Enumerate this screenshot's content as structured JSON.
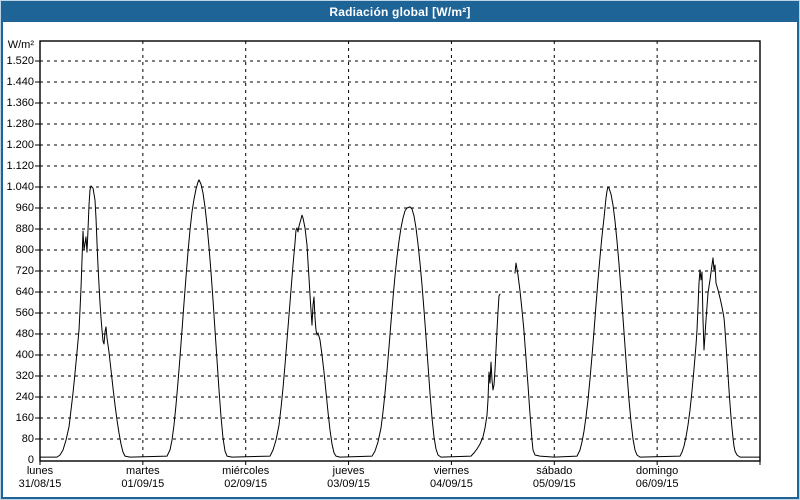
{
  "window": {
    "title": "Radiación global [W/m²]"
  },
  "colors": {
    "titlebar": "#1e6496",
    "window_border": "#1e6496",
    "plot_background": "#ffffff",
    "line": "#000000",
    "grid": "#000000",
    "label_text": "#000000",
    "title_text": "#ffffff"
  },
  "y_axis": {
    "unit": "W/m²"
  },
  "x_axis": {
    "days": [
      {
        "weekday": "lunes",
        "date": "31/08/15"
      },
      {
        "weekday": "martes",
        "date": "01/09/15"
      },
      {
        "weekday": "miércoles",
        "date": "02/09/15"
      },
      {
        "weekday": "jueves",
        "date": "03/09/15"
      },
      {
        "weekday": "viernes",
        "date": "04/09/15"
      },
      {
        "weekday": "sábado",
        "date": "05/09/15"
      },
      {
        "weekday": "domingo",
        "date": "06/09/15"
      }
    ]
  },
  "chart_data": {
    "type": "line",
    "title": "Radiación global [W/m²]",
    "xlabel": "",
    "ylabel": "W/m²",
    "ylim": [
      0,
      1585
    ],
    "grid": true,
    "legend": false,
    "x_note": "x coded in plot pixels: 40 = lunes 00:00, 102.86 px per day, 760 = end of domingo; null entry = data gap in viernes afternoon",
    "y_ticks": [
      {
        "label": "1.520",
        "value": 1520
      },
      {
        "label": "1.440",
        "value": 1440
      },
      {
        "label": "1.360",
        "value": 1360
      },
      {
        "label": "1.280",
        "value": 1280
      },
      {
        "label": "1.200",
        "value": 1200
      },
      {
        "label": "1.120",
        "value": 1120
      },
      {
        "label": "1.040",
        "value": 1040
      },
      {
        "label": "960",
        "value": 960
      },
      {
        "label": "880",
        "value": 880
      },
      {
        "label": "800",
        "value": 800
      },
      {
        "label": "720",
        "value": 720
      },
      {
        "label": "640",
        "value": 640
      },
      {
        "label": "560",
        "value": 560
      },
      {
        "label": "480",
        "value": 480
      },
      {
        "label": "400",
        "value": 400
      },
      {
        "label": "320",
        "value": 320
      },
      {
        "label": "240",
        "value": 240
      },
      {
        "label": "160",
        "value": 160
      },
      {
        "label": "80",
        "value": 80
      },
      {
        "label": "0",
        "value": 0
      }
    ],
    "daily_peaks_wm2": [
      1044,
      1067,
      933,
      964,
      750,
      1040,
      770
    ],
    "series": [
      {
        "name": "Radiación global",
        "unit": "W/m²",
        "points": [
          [
            40,
            11
          ],
          [
            57,
            11
          ],
          [
            60,
            19
          ],
          [
            63,
            38
          ],
          [
            66,
            76
          ],
          [
            69,
            126
          ],
          [
            71,
            190
          ],
          [
            73,
            255
          ],
          [
            75,
            331
          ],
          [
            77,
            411
          ],
          [
            79,
            495
          ],
          [
            80,
            571
          ],
          [
            81,
            655
          ],
          [
            82,
            762
          ],
          [
            83,
            872
          ],
          [
            84,
            800
          ],
          [
            86,
            850
          ],
          [
            87,
            792
          ],
          [
            88,
            876
          ],
          [
            89,
            971
          ],
          [
            90,
            1029
          ],
          [
            91,
            1044
          ],
          [
            93,
            1036
          ],
          [
            95,
            990
          ],
          [
            96,
            922
          ],
          [
            97,
            827
          ],
          [
            98,
            739
          ],
          [
            99,
            667
          ],
          [
            100,
            598
          ],
          [
            101,
            541
          ],
          [
            102,
            495
          ],
          [
            103,
            453
          ],
          [
            104,
            442
          ],
          [
            105,
            488
          ],
          [
            106,
            507
          ],
          [
            107,
            465
          ],
          [
            109,
            411
          ],
          [
            111,
            343
          ],
          [
            113,
            274
          ],
          [
            115,
            210
          ],
          [
            117,
            152
          ],
          [
            119,
            103
          ],
          [
            121,
            61
          ],
          [
            123,
            30
          ],
          [
            125,
            15
          ],
          [
            130,
            11
          ],
          [
            167,
            15
          ],
          [
            170,
            38
          ],
          [
            172,
            76
          ],
          [
            174,
            133
          ],
          [
            176,
            210
          ],
          [
            178,
            297
          ],
          [
            180,
            392
          ],
          [
            182,
            495
          ],
          [
            184,
            598
          ],
          [
            186,
            697
          ],
          [
            188,
            792
          ],
          [
            190,
            876
          ],
          [
            192,
            945
          ],
          [
            194,
            994
          ],
          [
            196,
            1032
          ],
          [
            198,
            1059
          ],
          [
            199,
            1067
          ],
          [
            201,
            1051
          ],
          [
            203,
            1017
          ],
          [
            205,
            964
          ],
          [
            207,
            895
          ],
          [
            209,
            811
          ],
          [
            211,
            716
          ],
          [
            213,
            610
          ],
          [
            215,
            495
          ],
          [
            217,
            381
          ],
          [
            219,
            267
          ],
          [
            221,
            164
          ],
          [
            223,
            84
          ],
          [
            225,
            34
          ],
          [
            227,
            15
          ],
          [
            232,
            11
          ],
          [
            270,
            15
          ],
          [
            273,
            38
          ],
          [
            276,
            76
          ],
          [
            279,
            133
          ],
          [
            281,
            198
          ],
          [
            283,
            274
          ],
          [
            285,
            362
          ],
          [
            287,
            457
          ],
          [
            289,
            552
          ],
          [
            291,
            648
          ],
          [
            293,
            743
          ],
          [
            295,
            827
          ],
          [
            296,
            876
          ],
          [
            297,
            884
          ],
          [
            298,
            869
          ],
          [
            299,
            891
          ],
          [
            301,
            918
          ],
          [
            302,
            933
          ],
          [
            303,
            922
          ],
          [
            305,
            884
          ],
          [
            307,
            819
          ],
          [
            308,
            754
          ],
          [
            309,
            693
          ],
          [
            310,
            629
          ],
          [
            311,
            571
          ],
          [
            312,
            514
          ],
          [
            313,
            590
          ],
          [
            314,
            621
          ],
          [
            315,
            541
          ],
          [
            316,
            495
          ],
          [
            317,
            476
          ],
          [
            318,
            484
          ],
          [
            320,
            457
          ],
          [
            322,
            400
          ],
          [
            324,
            335
          ],
          [
            326,
            259
          ],
          [
            328,
            183
          ],
          [
            330,
            114
          ],
          [
            332,
            61
          ],
          [
            334,
            27
          ],
          [
            336,
            15
          ],
          [
            340,
            11
          ],
          [
            372,
            15
          ],
          [
            375,
            34
          ],
          [
            378,
            69
          ],
          [
            381,
            122
          ],
          [
            383,
            183
          ],
          [
            385,
            255
          ],
          [
            387,
            339
          ],
          [
            389,
            430
          ],
          [
            391,
            526
          ],
          [
            393,
            617
          ],
          [
            395,
            701
          ],
          [
            397,
            773
          ],
          [
            399,
            834
          ],
          [
            401,
            884
          ],
          [
            403,
            922
          ],
          [
            405,
            949
          ],
          [
            407,
            960
          ],
          [
            410,
            964
          ],
          [
            412,
            956
          ],
          [
            414,
            930
          ],
          [
            416,
            884
          ],
          [
            418,
            823
          ],
          [
            420,
            750
          ],
          [
            422,
            667
          ],
          [
            424,
            571
          ],
          [
            426,
            469
          ],
          [
            428,
            362
          ],
          [
            430,
            255
          ],
          [
            432,
            160
          ],
          [
            434,
            88
          ],
          [
            436,
            42
          ],
          [
            438,
            19
          ],
          [
            441,
            11
          ],
          [
            471,
            15
          ],
          [
            474,
            27
          ],
          [
            477,
            42
          ],
          [
            480,
            61
          ],
          [
            483,
            88
          ],
          [
            485,
            122
          ],
          [
            487,
            171
          ],
          [
            488,
            229
          ],
          [
            489,
            335
          ],
          [
            490,
            293
          ],
          [
            491,
            373
          ],
          [
            492,
            305
          ],
          [
            493,
            267
          ],
          [
            494,
            286
          ],
          [
            495,
            343
          ],
          [
            496,
            419
          ],
          [
            497,
            495
          ],
          [
            498,
            564
          ],
          [
            499,
            625
          ],
          [
            500,
            632
          ],
          null,
          [
            515,
            712
          ],
          [
            516,
            750
          ],
          [
            518,
            705
          ],
          [
            520,
            644
          ],
          [
            522,
            571
          ],
          [
            524,
            491
          ],
          [
            525,
            438
          ],
          [
            526,
            389
          ],
          [
            527,
            335
          ],
          [
            528,
            286
          ],
          [
            529,
            229
          ],
          [
            530,
            175
          ],
          [
            531,
            126
          ],
          [
            532,
            76
          ],
          [
            533,
            38
          ],
          [
            535,
            19
          ],
          [
            540,
            15
          ],
          [
            554,
            11
          ],
          [
            577,
            15
          ],
          [
            580,
            38
          ],
          [
            582,
            69
          ],
          [
            584,
            110
          ],
          [
            586,
            164
          ],
          [
            588,
            229
          ],
          [
            590,
            309
          ],
          [
            592,
            396
          ],
          [
            594,
            491
          ],
          [
            596,
            590
          ],
          [
            598,
            686
          ],
          [
            600,
            773
          ],
          [
            602,
            853
          ],
          [
            604,
            922
          ],
          [
            606,
            998
          ],
          [
            607,
            1025
          ],
          [
            608,
            1040
          ],
          [
            609,
            1036
          ],
          [
            611,
            1013
          ],
          [
            613,
            971
          ],
          [
            615,
            910
          ],
          [
            617,
            834
          ],
          [
            619,
            747
          ],
          [
            621,
            648
          ],
          [
            623,
            541
          ],
          [
            625,
            434
          ],
          [
            627,
            328
          ],
          [
            629,
            229
          ],
          [
            631,
            145
          ],
          [
            633,
            80
          ],
          [
            635,
            38
          ],
          [
            637,
            19
          ],
          [
            640,
            11
          ],
          [
            680,
            15
          ],
          [
            682,
            30
          ],
          [
            684,
            53
          ],
          [
            686,
            88
          ],
          [
            688,
            133
          ],
          [
            690,
            190
          ],
          [
            692,
            263
          ],
          [
            694,
            347
          ],
          [
            695,
            392
          ],
          [
            696,
            438
          ],
          [
            697,
            495
          ],
          [
            698,
            583
          ],
          [
            699,
            674
          ],
          [
            700,
            724
          ],
          [
            701,
            686
          ],
          [
            702,
            716
          ],
          [
            703,
            533
          ],
          [
            704,
            419
          ],
          [
            706,
            533
          ],
          [
            708,
            636
          ],
          [
            710,
            686
          ],
          [
            712,
            743
          ],
          [
            713,
            770
          ],
          [
            714,
            724
          ],
          [
            715,
            743
          ],
          [
            716,
            674
          ],
          [
            718,
            648
          ],
          [
            720,
            617
          ],
          [
            722,
            583
          ],
          [
            724,
            541
          ],
          [
            725,
            495
          ],
          [
            726,
            438
          ],
          [
            727,
            381
          ],
          [
            728,
            324
          ],
          [
            729,
            267
          ],
          [
            730,
            213
          ],
          [
            731,
            164
          ],
          [
            732,
            122
          ],
          [
            733,
            84
          ],
          [
            734,
            53
          ],
          [
            735,
            34
          ],
          [
            737,
            19
          ],
          [
            740,
            11
          ],
          [
            760,
            11
          ]
        ]
      }
    ]
  }
}
